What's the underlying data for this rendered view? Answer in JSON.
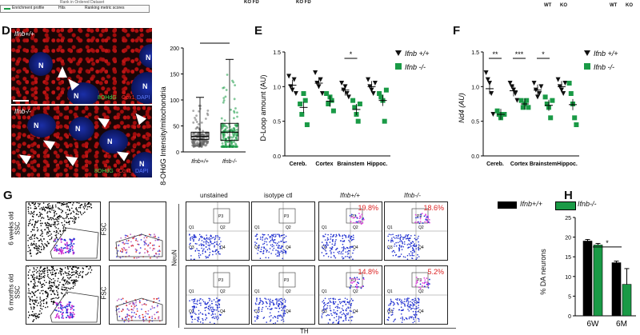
{
  "top_strip": {
    "legend_enrichment": "Enrichment profile",
    "legend_hits": "Hits",
    "legend_ranking": "Ranking metric scores",
    "rank_text": "Rank in Ordered Dataset",
    "wt1": "WT",
    "ko1": "KO",
    "wt2": "WT",
    "ko2": "KO",
    "kofd1": "KO FD",
    "kofd2": "KO FD"
  },
  "panel_labels": {
    "D": "D",
    "E": "E",
    "F": "F",
    "G": "G",
    "H": "H"
  },
  "panel_d": {
    "top_genotype": "Ifnb+/+",
    "bottom_genotype": "Ifnb-/-",
    "nucleus_label": "N",
    "channels": {
      "a": "8OHdG",
      "b": "Cox1",
      "c": "DAPI"
    },
    "ylabel": "8-OHdG Intensity/mitochondria",
    "significance": "****",
    "x_ticks": [
      "Ifnb+/+",
      "Ifnb-/-"
    ],
    "y_ticks": [
      "0",
      "50",
      "100",
      "150",
      "200"
    ],
    "chart_data": {
      "type": "box",
      "categories": [
        "Ifnb+/+",
        "Ifnb-/-"
      ],
      "median": [
        30,
        38
      ],
      "q1": [
        24,
        22
      ],
      "q3": [
        38,
        55
      ],
      "min": [
        10,
        10
      ],
      "max": [
        105,
        178
      ],
      "ylim": [
        0,
        200
      ]
    }
  },
  "panel_e": {
    "ylabel": "D-Loop amount (AU)",
    "legend": [
      "Ifnb +/+",
      "Ifnb -/-"
    ],
    "significance": "*",
    "chart_data": {
      "type": "scatter",
      "categories": [
        "Cereb.",
        "Cortex",
        "Brainstem",
        "Hippoc."
      ],
      "series": [
        {
          "name": "Ifnb +/+",
          "color": "#111111",
          "values": [
            [
              1.15,
              1.0,
              0.95,
              1.1,
              0.9
            ],
            [
              1.2,
              1.05,
              1.0,
              1.1,
              0.9
            ],
            [
              1.05,
              0.95,
              1.0,
              0.9,
              0.85
            ],
            [
              1.1,
              1.0,
              0.95,
              0.9,
              1.05
            ]
          ]
        },
        {
          "name": "Ifnb -/-",
          "color": "#1a9a46",
          "values": [
            [
              0.75,
              0.6,
              0.9,
              0.8,
              0.45
            ],
            [
              0.9,
              0.75,
              0.85,
              0.8,
              0.65
            ],
            [
              0.8,
              0.7,
              0.6,
              0.5,
              0.75
            ],
            [
              0.9,
              0.85,
              0.8,
              0.5,
              0.95
            ]
          ]
        }
      ],
      "ylim": [
        0.0,
        1.5
      ],
      "yticks": [
        "0.0",
        "0.5",
        "1.0",
        "1.5"
      ]
    }
  },
  "panel_f": {
    "ylabel": "Nd4 (AU)",
    "legend": [
      "Ifnb +/+",
      "Ifnb -/-"
    ],
    "significance": [
      "**",
      "***",
      "*",
      ""
    ],
    "chart_data": {
      "type": "scatter",
      "categories": [
        "Cereb.",
        "Cortex",
        "Brainstem",
        "Hippoc."
      ],
      "series": [
        {
          "name": "Ifnb +/+",
          "color": "#111111",
          "values": [
            [
              1.2,
              1.1,
              1.05,
              0.9,
              0.6
            ],
            [
              1.05,
              1.0,
              0.95,
              0.9,
              0.8
            ],
            [
              1.05,
              0.95,
              0.85,
              0.9,
              1.0
            ],
            [
              1.1,
              1.0,
              0.95,
              0.9,
              1.05
            ]
          ]
        },
        {
          "name": "Ifnb -/-",
          "color": "#1a9a46",
          "values": [
            [
              0.65,
              0.6,
              0.55,
              0.6,
              0.6
            ],
            [
              0.8,
              0.7,
              0.75,
              0.8,
              0.7
            ],
            [
              0.85,
              0.75,
              0.7,
              0.55,
              0.8
            ],
            [
              1.05,
              0.9,
              0.75,
              0.55,
              0.45
            ]
          ]
        }
      ],
      "ylim": [
        0.0,
        1.5
      ],
      "yticks": [
        "0.0",
        "0.5",
        "1.0",
        "1.5"
      ]
    }
  },
  "panel_g": {
    "row1_label": "6 weeks old",
    "row2_label": "6 months old",
    "ssc": "SSC",
    "fsc": "FSC",
    "neun": "NeuN",
    "th": "TH",
    "columns": [
      "unstained",
      "isotype ctl",
      "Ifnb+/+",
      "Ifnb-/-"
    ],
    "quadrants": [
      "Q1",
      "Q2",
      "Q3",
      "Q4"
    ],
    "gate": "P3",
    "row1_pct": [
      "19.8%",
      "18.6%"
    ],
    "row2_pct": [
      "14.8%",
      "5.2%"
    ]
  },
  "panel_h": {
    "ylabel": "% DA neurons",
    "legend": [
      "Ifnb+/+",
      "Ifnb-/-"
    ],
    "significance": "*",
    "chart_data": {
      "type": "bar",
      "categories": [
        "6W",
        "6M"
      ],
      "series": [
        {
          "name": "Ifnb+/+",
          "color": "#000000",
          "values": [
            19,
            13.5
          ]
        },
        {
          "name": "Ifnb-/-",
          "color": "#1a9a46",
          "values": [
            18,
            8
          ]
        }
      ],
      "ylim": [
        0,
        25
      ],
      "yticks": [
        "0",
        "5",
        "10",
        "15",
        "20",
        "25"
      ]
    }
  }
}
